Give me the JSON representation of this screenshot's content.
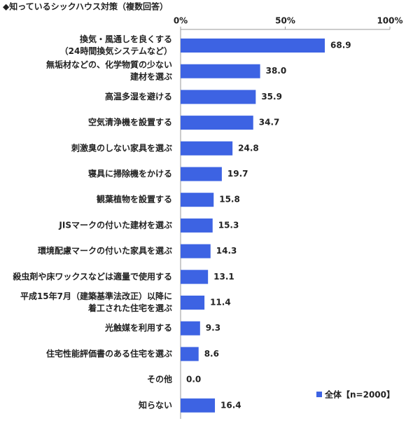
{
  "chart_data": {
    "type": "bar",
    "orientation": "horizontal",
    "title": "◆知っているシックハウス対策（複数回答）",
    "categories": [
      [
        "換気・風通しを良くする",
        "（24時間換気システムなど）"
      ],
      [
        "無垢材などの、化学物質の少ない",
        "建材を選ぶ"
      ],
      [
        "高温多湿を避ける"
      ],
      [
        "空気清浄機を設置する"
      ],
      [
        "刺激臭のしない家具を選ぶ"
      ],
      [
        "寝具に掃除機をかける"
      ],
      [
        "観葉植物を設置する"
      ],
      [
        "JISマークの付いた建材を選ぶ"
      ],
      [
        "環境配慮マークの付いた家具を選ぶ"
      ],
      [
        "殺虫剤や床ワックスなどは適量で使用する"
      ],
      [
        "平成15年7月（建築基準法改正）以降に",
        "着工された住宅を選ぶ"
      ],
      [
        "光触媒を利用する"
      ],
      [
        "住宅性能評価書のある住宅を選ぶ"
      ],
      [
        "その他"
      ],
      [
        "知らない"
      ]
    ],
    "series": [
      {
        "name": "全体【n=2000】",
        "color": "#3d63e3",
        "values": [
          68.9,
          38.0,
          35.9,
          34.7,
          24.8,
          19.7,
          15.8,
          15.3,
          14.3,
          13.1,
          11.4,
          9.3,
          8.6,
          0.0,
          16.4
        ],
        "value_labels": [
          "68.9",
          "38.0",
          "35.9",
          "34.7",
          "24.8",
          "19.7",
          "15.8",
          "15.3",
          "14.3",
          "13.1",
          "11.4",
          "9.3",
          "8.6",
          "0.0",
          "16.4"
        ]
      }
    ],
    "xlim": [
      0,
      100
    ],
    "xticks": [
      {
        "value": 0,
        "label": "0%"
      },
      {
        "value": 50,
        "label": "50%"
      },
      {
        "value": 100,
        "label": "100%"
      }
    ],
    "legend": "lower right"
  }
}
